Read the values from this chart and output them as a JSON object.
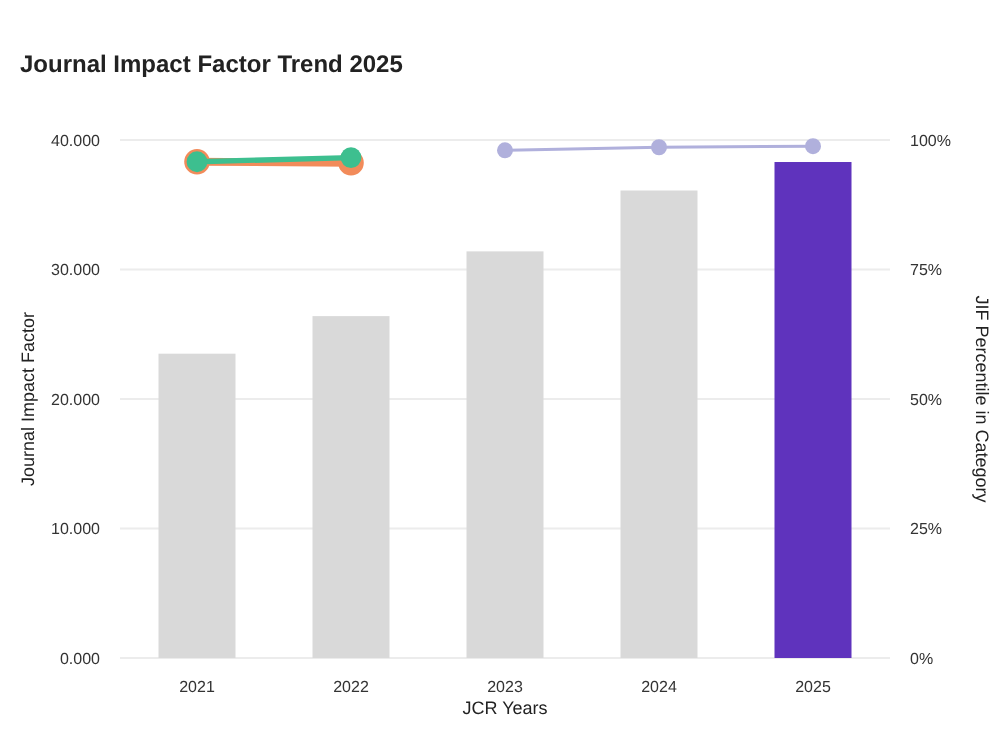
{
  "chart_data": {
    "type": "bar",
    "title": "Journal Impact Factor Trend 2025",
    "xlabel": "JCR Years",
    "ylabel": "Journal Impact Factor",
    "y2label": "JIF Percentile in Category",
    "categories": [
      "2021",
      "2022",
      "2023",
      "2024",
      "2025"
    ],
    "series": [
      {
        "colors": [
          "#d9d9d9",
          "#d9d9d9",
          "#d9d9d9",
          "#d9d9d9",
          "#5f33bd"
        ],
        "values": [
          23.5,
          26.4,
          31.4,
          36.1,
          38.3
        ]
      },
      {
        "type": "line",
        "axis": "y2",
        "color": "#f28b5a",
        "values": [
          95.8,
          95.6,
          null,
          null,
          null
        ]
      },
      {
        "type": "line",
        "axis": "y2",
        "color": "#3dbf8f",
        "values": [
          95.8,
          96.6,
          null,
          null,
          null
        ]
      },
      {
        "type": "line",
        "axis": "y2",
        "color": "#b0b0dc",
        "values": [
          null,
          null,
          98.0,
          98.6,
          98.8
        ]
      }
    ],
    "ylim": [
      0,
      40
    ],
    "yticks": [
      {
        "value": 0,
        "label": "0.000"
      },
      {
        "value": 10,
        "label": "10.000"
      },
      {
        "value": 20,
        "label": "20.000"
      },
      {
        "value": 30,
        "label": "30.000"
      },
      {
        "value": 40,
        "label": "40.000"
      }
    ],
    "y2lim": [
      0,
      100
    ],
    "y2ticks": [
      {
        "value": 0,
        "label": "0%"
      },
      {
        "value": 25,
        "label": "25%"
      },
      {
        "value": 50,
        "label": "50%"
      },
      {
        "value": 75,
        "label": "75%"
      },
      {
        "value": 100,
        "label": "100%"
      }
    ],
    "grid": "y",
    "marker": "circle"
  }
}
